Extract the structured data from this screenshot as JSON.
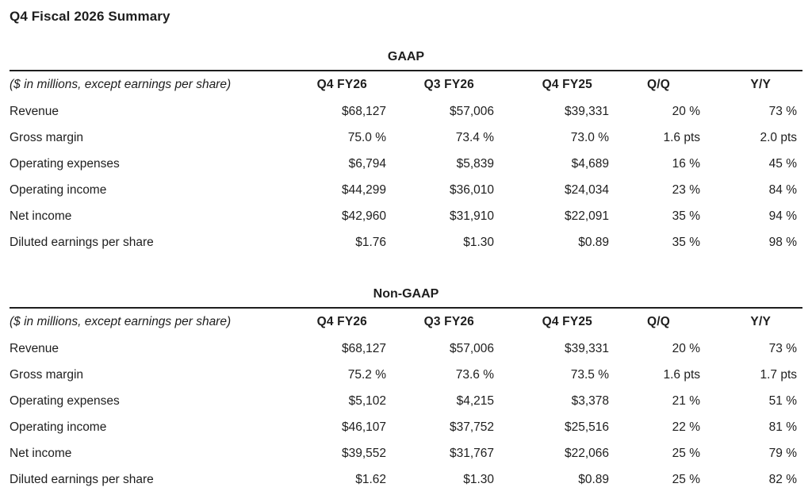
{
  "page_title": "Q4 Fiscal 2026 Summary",
  "colors": {
    "text": "#1e1e1e",
    "rule": "#1e1e1e",
    "background": "#ffffff"
  },
  "tables": [
    {
      "title": "GAAP",
      "note": "($ in millions, except earnings per share)",
      "columns": [
        "Q4 FY26",
        "Q3 FY26",
        "Q4 FY25",
        "Q/Q",
        "Y/Y"
      ],
      "rows": [
        {
          "label": "Revenue",
          "values": [
            "$68,127",
            "$57,006",
            "$39,331",
            "20 %",
            "73 %"
          ]
        },
        {
          "label": "Gross margin",
          "values": [
            "75.0 %",
            "73.4 %",
            "73.0 %",
            "1.6 pts",
            "2.0 pts"
          ]
        },
        {
          "label": "Operating expenses",
          "values": [
            "$6,794",
            "$5,839",
            "$4,689",
            "16 %",
            "45 %"
          ]
        },
        {
          "label": "Operating income",
          "values": [
            "$44,299",
            "$36,010",
            "$24,034",
            "23 %",
            "84 %"
          ]
        },
        {
          "label": "Net income",
          "values": [
            "$42,960",
            "$31,910",
            "$22,091",
            "35 %",
            "94 %"
          ]
        },
        {
          "label": "Diluted earnings per share",
          "values": [
            "$1.76",
            "$1.30",
            "$0.89",
            "35 %",
            "98 %"
          ]
        }
      ]
    },
    {
      "title": "Non-GAAP",
      "note": "($ in millions, except earnings per share)",
      "columns": [
        "Q4 FY26",
        "Q3 FY26",
        "Q4 FY25",
        "Q/Q",
        "Y/Y"
      ],
      "rows": [
        {
          "label": "Revenue",
          "values": [
            "$68,127",
            "$57,006",
            "$39,331",
            "20 %",
            "73 %"
          ]
        },
        {
          "label": "Gross margin",
          "values": [
            "75.2 %",
            "73.6 %",
            "73.5 %",
            "1.6 pts",
            "1.7 pts"
          ]
        },
        {
          "label": "Operating expenses",
          "values": [
            "$5,102",
            "$4,215",
            "$3,378",
            "21 %",
            "51 %"
          ]
        },
        {
          "label": "Operating income",
          "values": [
            "$46,107",
            "$37,752",
            "$25,516",
            "22 %",
            "81 %"
          ]
        },
        {
          "label": "Net income",
          "values": [
            "$39,552",
            "$31,767",
            "$22,066",
            "25 %",
            "79 %"
          ]
        },
        {
          "label": "Diluted earnings per share",
          "values": [
            "$1.62",
            "$1.30",
            "$0.89",
            "25 %",
            "82 %"
          ]
        }
      ]
    }
  ]
}
